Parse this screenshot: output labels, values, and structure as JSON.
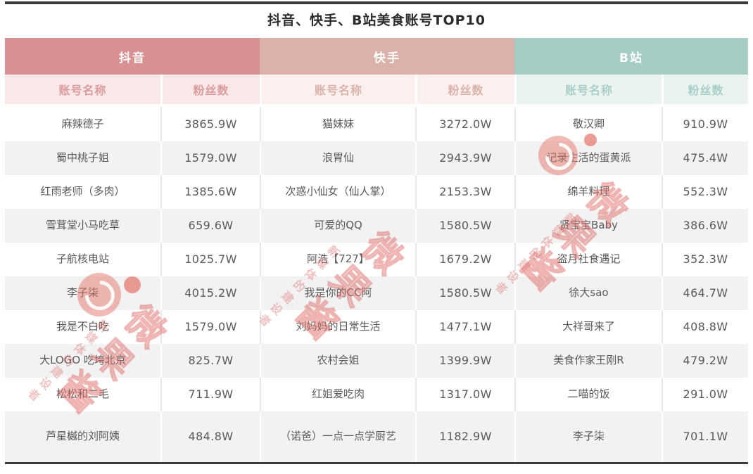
{
  "title": "抖音、快手、B站美食账号TOP10",
  "chart_data": {
    "type": "table",
    "title": "抖音、快手、B站美食账号TOP10",
    "column_headers": {
      "name": "账号名称",
      "fans": "粉丝数"
    },
    "groups": [
      {
        "platform": "抖音",
        "accent": "#d99092",
        "rows": [
          {
            "name": "麻辣德子",
            "fans": "3865.9W"
          },
          {
            "name": "蜀中桃子姐",
            "fans": "1579.0W"
          },
          {
            "name": "红雨老师（多肉）",
            "fans": "1385.6W"
          },
          {
            "name": "雪茸堂小马吃草",
            "fans": "659.6W"
          },
          {
            "name": "子航核电站",
            "fans": "1025.7W"
          },
          {
            "name": "李子柒",
            "fans": "4015.2W"
          },
          {
            "name": "我是不白吃",
            "fans": "1579.0W"
          },
          {
            "name": "大LOGO 吃垮北京",
            "fans": "825.7W"
          },
          {
            "name": "松松和二毛",
            "fans": "711.9W"
          },
          {
            "name": "芦星樾的刘阿姨",
            "fans": "484.8W"
          }
        ]
      },
      {
        "platform": "快手",
        "accent": "#dbb2aa",
        "rows": [
          {
            "name": "猫妹妹",
            "fans": "3272.0W"
          },
          {
            "name": "浪胃仙",
            "fans": "2943.9W"
          },
          {
            "name": "次惑小仙女（仙人掌）",
            "fans": "2153.3W"
          },
          {
            "name": "可爱的QQ",
            "fans": "1580.5W"
          },
          {
            "name": "阿浩【727】",
            "fans": "1679.2W"
          },
          {
            "name": "我是你的CC阿",
            "fans": "1580.5W"
          },
          {
            "name": "刘妈妈的日常生活",
            "fans": "1477.1W"
          },
          {
            "name": "农村会姐",
            "fans": "1399.9W"
          },
          {
            "name": "红姐爱吃肉",
            "fans": "1317.0W"
          },
          {
            "name": "（诺爸）一点一点学厨艺",
            "fans": "1182.9W"
          }
        ]
      },
      {
        "platform": "B站",
        "accent": "#a5cdc6",
        "rows": [
          {
            "name": "敬汉卿",
            "fans": "910.9W"
          },
          {
            "name": "记录生活的蛋黄派",
            "fans": "475.4W"
          },
          {
            "name": "绵羊料理",
            "fans": "552.3W"
          },
          {
            "name": "贤宝宝Baby",
            "fans": "386.6W"
          },
          {
            "name": "盗月社食遇记",
            "fans": "352.3W"
          },
          {
            "name": "徐大sao",
            "fans": "464.7W"
          },
          {
            "name": "大祥哥来了",
            "fans": "408.8W"
          },
          {
            "name": "美食作家王刚R",
            "fans": "479.2W"
          },
          {
            "name": "二喵的饭",
            "fans": "291.0W"
          },
          {
            "name": "李子柒",
            "fans": "701.1W"
          }
        ]
      }
    ]
  },
  "watermark": {
    "big_text": "微果酱",
    "small_text": "新媒体的建设者",
    "logo": "weiguojiang-logo"
  },
  "colors": {
    "douyin_band": "#d99092",
    "kuaishou_band": "#dbb2aa",
    "bilibili_band": "#a5cdc6",
    "douyin_subhead_bg": "#f8e8e7",
    "douyin_subhead_text": "#dc9c9e",
    "kuaishou_subhead_bg": "#fbf0ee",
    "kuaishou_subhead_text": "#dbb3ab",
    "bilibili_subhead_bg": "#ebf3f1",
    "bilibili_subhead_text": "#a8cec8",
    "row_alt_bg": "#f2f2f2",
    "cell_text": "#595959",
    "title_text": "#2b2b2b",
    "bar_color": "#3b3b3b",
    "watermark_red": "#e06a62"
  }
}
